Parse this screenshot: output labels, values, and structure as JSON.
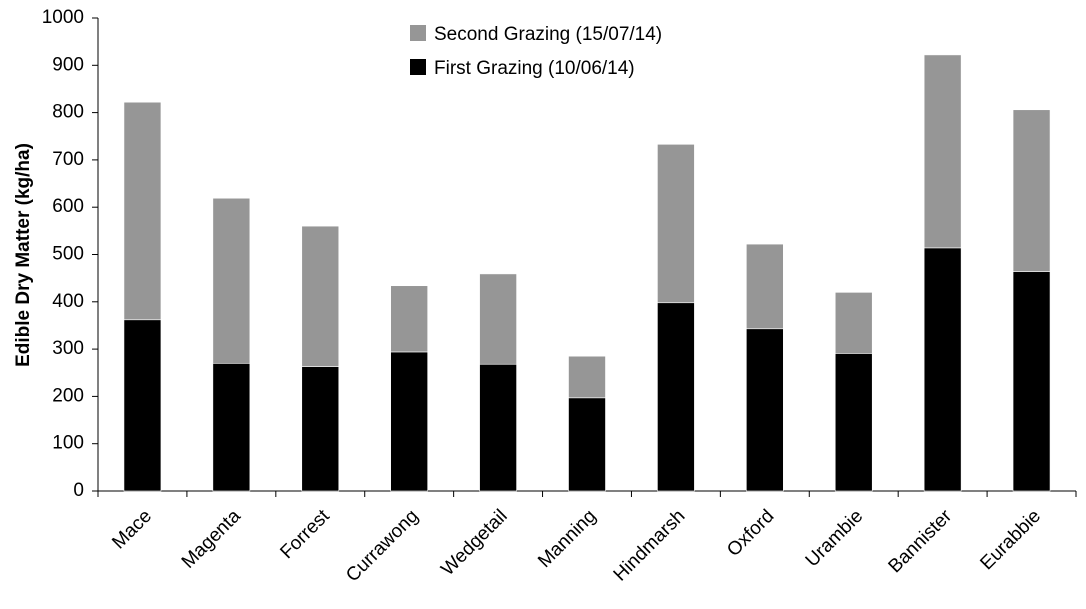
{
  "chart_data": {
    "type": "bar",
    "stacked": true,
    "title": "",
    "xlabel": "",
    "ylabel": "Edible Dry Matter (kg/ha)",
    "ylim": [
      0,
      1000
    ],
    "yticks": [
      0,
      100,
      200,
      300,
      400,
      500,
      600,
      700,
      800,
      900,
      1000
    ],
    "grid": false,
    "legend_position": "top-center",
    "categories": [
      "Mace",
      "Magenta",
      "Forrest",
      "Currawong",
      "Wedgetail",
      "Manning",
      "Hindmarsh",
      "Oxford",
      "Urambie",
      "Bannister",
      "Eurabbie"
    ],
    "series": [
      {
        "name": "First Grazing (10/06/14)",
        "color": "#000000",
        "values": [
          362,
          270,
          263,
          294,
          268,
          197,
          398,
          343,
          291,
          514,
          464
        ]
      },
      {
        "name": "Second Grazing (15/07/14)",
        "color": "#969696",
        "values": [
          460,
          349,
          297,
          140,
          191,
          88,
          335,
          179,
          129,
          408,
          342
        ]
      }
    ]
  }
}
